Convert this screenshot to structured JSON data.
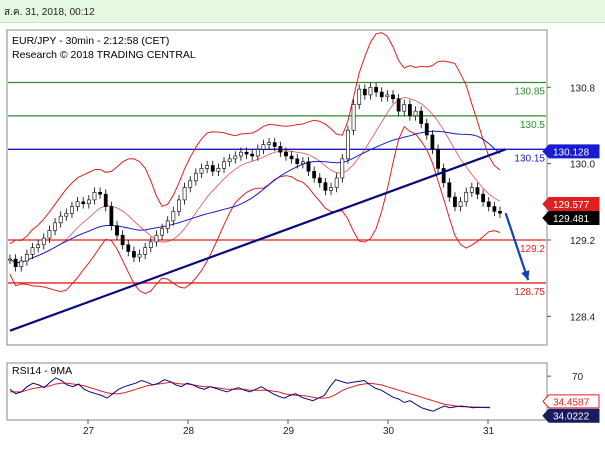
{
  "timestamp_bar": "ส.ค. 31, 2018, 00:12",
  "chart_data": [
    {
      "type": "candlestick",
      "title": "EUR/JPY - 30min - 2:12:58 (CET)",
      "subtitle": "Research © 2018 TRADING CENTRAL",
      "x_ticks": [
        "27",
        "28",
        "29",
        "30",
        "31"
      ],
      "y_ticks": [
        "130.8",
        "130.0",
        "129.2",
        "128.4"
      ],
      "ylim": [
        128.1,
        131.4
      ],
      "price_series": [
        129.0,
        128.92,
        128.98,
        129.05,
        129.12,
        129.15,
        129.22,
        129.3,
        129.38,
        129.45,
        129.48,
        129.55,
        129.6,
        129.58,
        129.62,
        129.7,
        129.68,
        129.55,
        129.35,
        129.25,
        129.15,
        129.08,
        129.02,
        129.05,
        129.12,
        129.18,
        129.25,
        129.32,
        129.4,
        129.5,
        129.62,
        129.75,
        129.82,
        129.9,
        129.95,
        129.98,
        129.92,
        129.95,
        130.02,
        130.05,
        130.08,
        130.12,
        130.1,
        130.08,
        130.15,
        130.2,
        130.22,
        130.18,
        130.12,
        130.08,
        130.05,
        130.0,
        130.02,
        129.92,
        129.85,
        129.8,
        129.72,
        129.75,
        129.85,
        130.05,
        130.35,
        130.62,
        130.78,
        130.72,
        130.8,
        130.75,
        130.7,
        130.72,
        130.68,
        130.55,
        130.62,
        130.5,
        130.55,
        130.42,
        130.3,
        130.15,
        129.95,
        129.8,
        129.65,
        129.55,
        129.6,
        129.7,
        129.75,
        129.68,
        129.6,
        129.55,
        129.5,
        129.481
      ],
      "levels": [
        {
          "label": "130.85",
          "value": 130.85,
          "color": "#2e8b2e"
        },
        {
          "label": "130.5",
          "value": 130.5,
          "color": "#2e8b2e"
        },
        {
          "label": "130.15",
          "value": 130.15,
          "color": "#1a1ad0"
        },
        {
          "label": "129.2",
          "value": 129.2,
          "color": "#e02020"
        },
        {
          "label": "128.75",
          "value": 128.75,
          "color": "#e02020"
        }
      ],
      "trendline": {
        "from": [
          0,
          128.25
        ],
        "to": [
          88,
          130.15
        ],
        "color": "#0a0a80"
      },
      "projection_arrow": {
        "from": [
          88,
          129.481
        ],
        "to": [
          92,
          128.78
        ],
        "color": "#1040c0"
      },
      "price_tags": [
        {
          "label": "130.128",
          "value": 130.128,
          "bg": "#1a1ad0",
          "fg": "#ffffff"
        },
        {
          "label": "129.577",
          "value": 129.577,
          "bg": "#e02020",
          "fg": "#ffffff"
        },
        {
          "label": "129.481",
          "value": 129.481,
          "bg": "#000000",
          "fg": "#ffffff"
        }
      ],
      "overlays": [
        {
          "kind": "bollinger",
          "color": "#e02020"
        },
        {
          "kind": "moving-average",
          "color": "#1a1ad0"
        }
      ]
    },
    {
      "type": "line",
      "title": "RSI14 - 9MA",
      "y_ticks": [
        "70"
      ],
      "ylim": [
        20,
        85
      ],
      "rsi_series": [
        55,
        50,
        52,
        58,
        62,
        60,
        57,
        63,
        68,
        65,
        60,
        58,
        61,
        55,
        52,
        50,
        48,
        45,
        50,
        55,
        58,
        60,
        62,
        65,
        63,
        60,
        62,
        66,
        64,
        60,
        58,
        62,
        60,
        57,
        55,
        58,
        56,
        54,
        52,
        55,
        57,
        54,
        52,
        55,
        58,
        54,
        50,
        47,
        45,
        48,
        50,
        46,
        44,
        42,
        45,
        48,
        58,
        66,
        64,
        62,
        63,
        64,
        65,
        60,
        56,
        54,
        50,
        46,
        44,
        40,
        42,
        38,
        34,
        32,
        30,
        33,
        36,
        34,
        35,
        36,
        35,
        34,
        34.5,
        34.2,
        34.0222
      ],
      "ma_series": [
        52,
        52,
        52,
        54,
        56,
        57,
        58,
        59,
        61,
        62,
        62,
        61,
        60,
        59,
        57,
        55,
        53,
        51,
        50,
        50,
        51,
        53,
        55,
        57,
        59,
        60,
        61,
        62,
        63,
        62,
        61,
        61,
        60,
        59,
        58,
        58,
        57,
        56,
        55,
        55,
        55,
        55,
        54,
        54,
        54,
        54,
        53,
        52,
        50,
        49,
        48,
        48,
        47,
        46,
        45,
        45,
        46,
        49,
        53,
        56,
        58,
        60,
        61,
        62,
        61,
        60,
        58,
        56,
        54,
        52,
        50,
        48,
        46,
        44,
        42,
        40,
        38,
        37,
        36,
        35,
        35,
        34.8,
        34.6,
        34.5,
        34.4587
      ],
      "price_tags": [
        {
          "label": "34.4587",
          "value": 34.4587,
          "bg": "#ffffff",
          "fg": "#e02020"
        },
        {
          "label": "34.0222",
          "value": 34.0222,
          "bg": "#1a1a60",
          "fg": "#ffffff"
        }
      ]
    }
  ]
}
